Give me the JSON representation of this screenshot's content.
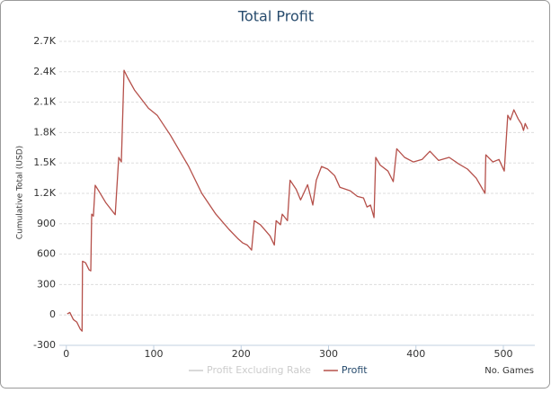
{
  "chart_data": {
    "type": "line",
    "title": "Total Profit",
    "y_label": "Cumulative Total (USD)",
    "x_label": "No. Games",
    "xlim": [
      -8,
      536
    ],
    "xticks": [
      0,
      100,
      200,
      300,
      400,
      500
    ],
    "ylim": [
      -300,
      2700
    ],
    "yticks": [
      -300,
      0,
      300,
      600,
      900,
      {
        "value": 1200,
        "label": "1.2K"
      },
      {
        "value": 1500,
        "label": "1.5K"
      },
      {
        "value": 1800,
        "label": "1.8K"
      },
      {
        "value": 2100,
        "label": "2.1K"
      },
      {
        "value": 2400,
        "label": "2.4K"
      },
      {
        "value": 2700,
        "label": "2.7K"
      }
    ],
    "grid": true,
    "legend": "bottom",
    "x": [
      1,
      4,
      8,
      12,
      16,
      18,
      18.5,
      22,
      26,
      28,
      29,
      31,
      33,
      37,
      45,
      54,
      56,
      60,
      63,
      66,
      70,
      78,
      94,
      104,
      119,
      140,
      155,
      171,
      186,
      196,
      202,
      207,
      212,
      215,
      222,
      233,
      238,
      240,
      245,
      247,
      253,
      256,
      263,
      268,
      270,
      276,
      282,
      286,
      292,
      299,
      307,
      313,
      325,
      333,
      340,
      344,
      348,
      352,
      354,
      359,
      368,
      374,
      378,
      387,
      397,
      407,
      416,
      426,
      438,
      449,
      459,
      469,
      479,
      480,
      488,
      495,
      501,
      505,
      508,
      512,
      517,
      521,
      523,
      525,
      528
    ],
    "series": [
      {
        "name": "Profit Excluding Rake",
        "color": "#cccccc",
        "visible": false
      },
      {
        "name": "Profit",
        "color": "#b5504a",
        "visible": true,
        "values": [
          10,
          25,
          -45,
          -70,
          -140,
          -160,
          530,
          515,
          445,
          435,
          995,
          975,
          1280,
          1225,
          1110,
          1010,
          990,
          1555,
          1510,
          2415,
          2345,
          2220,
          2040,
          1970,
          1775,
          1465,
          1200,
          995,
          845,
          755,
          710,
          690,
          640,
          930,
          890,
          780,
          690,
          930,
          890,
          995,
          930,
          1330,
          1240,
          1135,
          1170,
          1285,
          1085,
          1330,
          1465,
          1440,
          1375,
          1260,
          1225,
          1170,
          1155,
          1065,
          1085,
          960,
          1555,
          1480,
          1420,
          1315,
          1640,
          1555,
          1510,
          1535,
          1615,
          1525,
          1555,
          1490,
          1440,
          1350,
          1200,
          1580,
          1510,
          1535,
          1420,
          1970,
          1925,
          2025,
          1935,
          1880,
          1820,
          1890,
          1835
        ]
      }
    ]
  }
}
